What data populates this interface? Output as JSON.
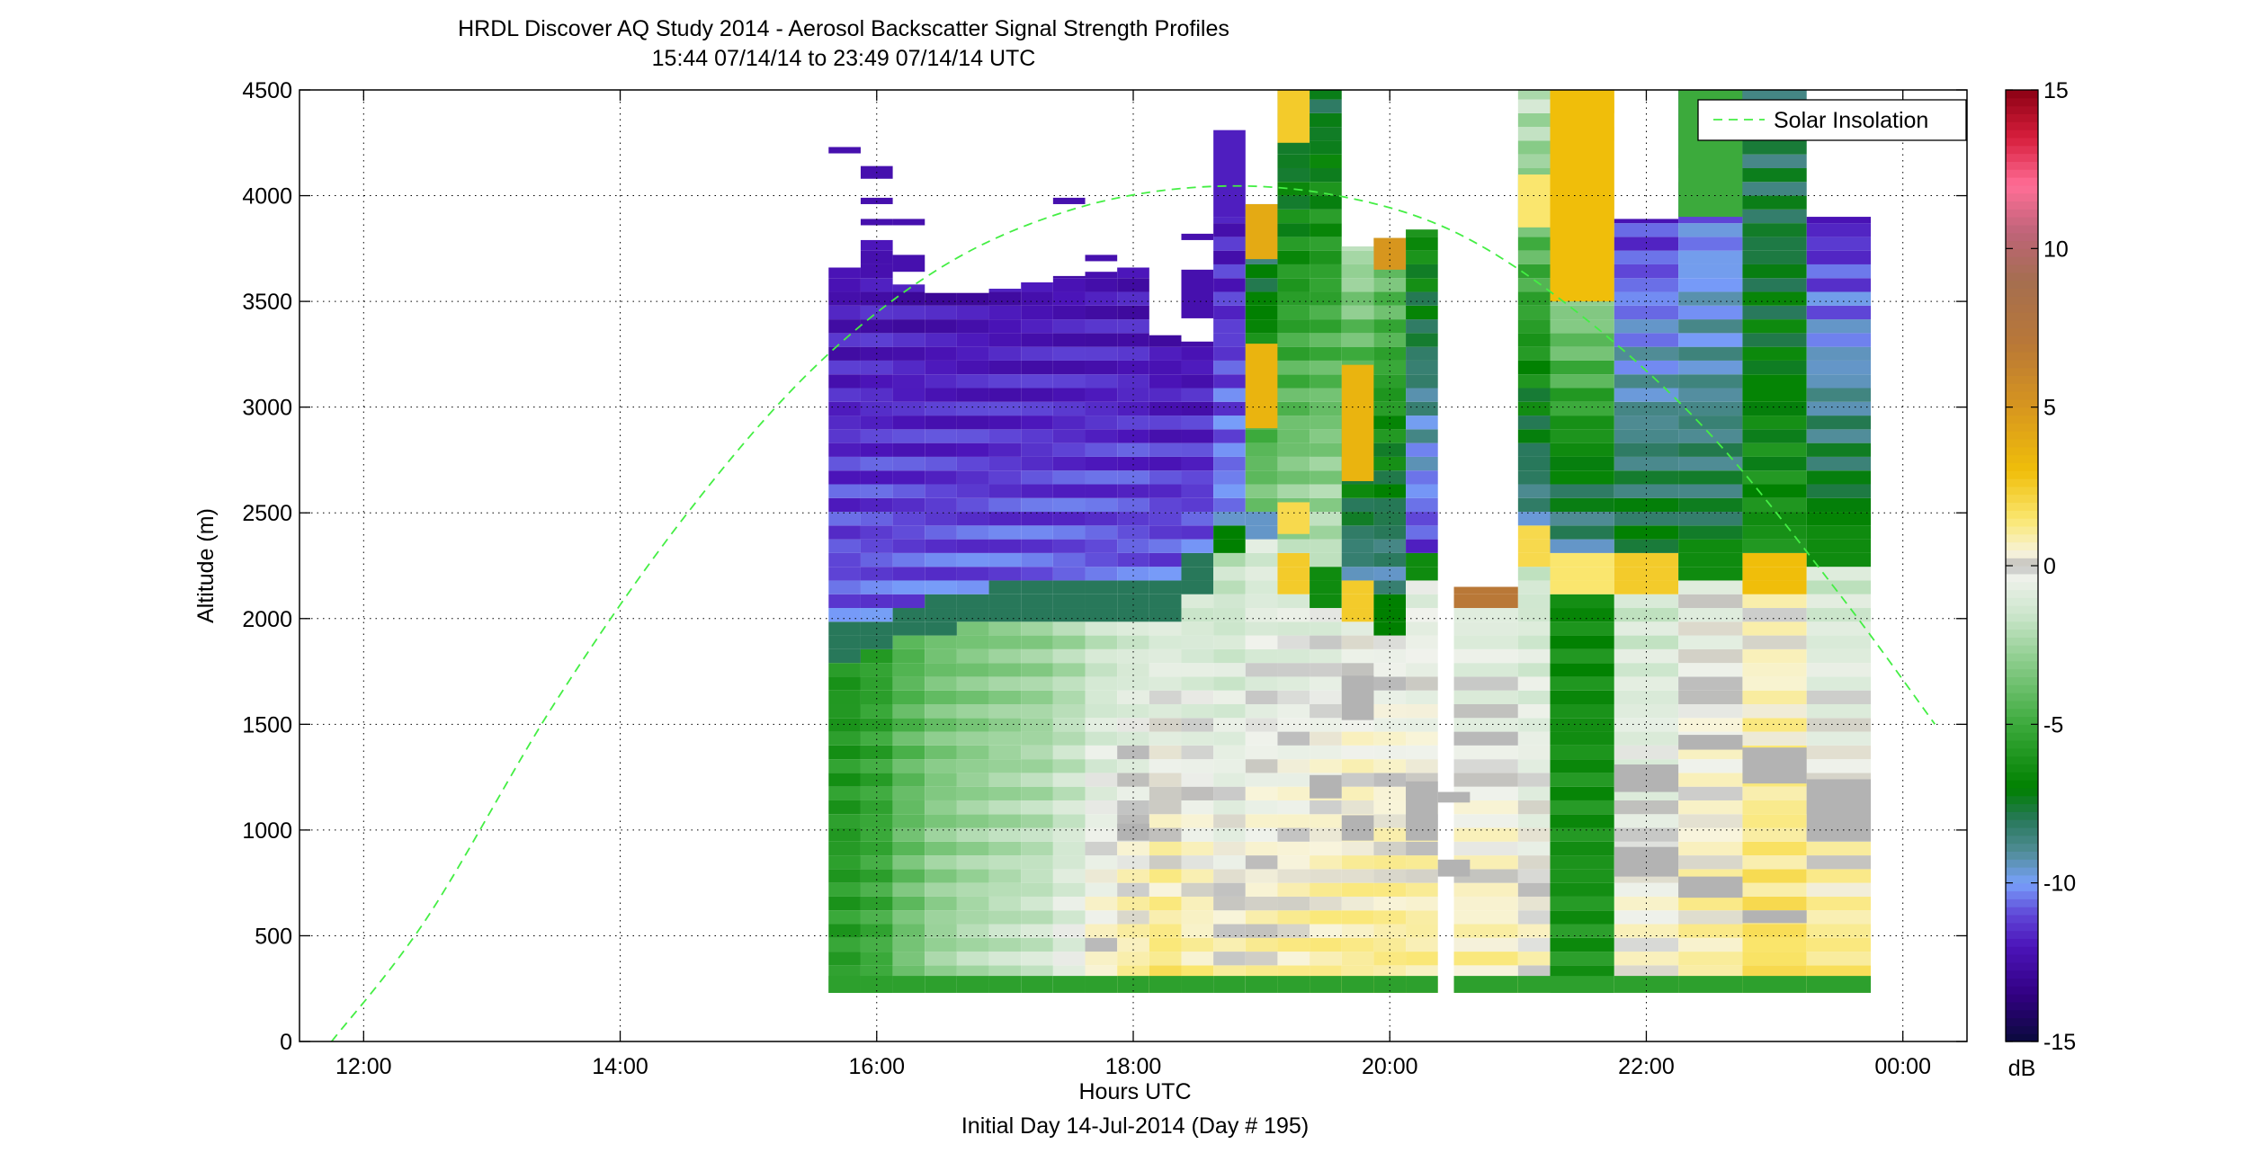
{
  "chart_data": {
    "type": "heatmap",
    "title": "HRDL Discover AQ Study 2014 - Aerosol Backscatter Signal Strength Profiles",
    "subtitle": "15:44 07/14/14 to 23:49 07/14/14  UTC",
    "xlabel": "Hours UTC",
    "xlabel2": "Initial Day 14-Jul-2014 (Day # 195)",
    "ylabel": "Altitude (m)",
    "xlim": [
      11.5,
      24.5
    ],
    "ylim": [
      0,
      4500
    ],
    "x_ticks": [
      12,
      14,
      16,
      18,
      20,
      22,
      24
    ],
    "x_tick_labels": [
      "12:00",
      "14:00",
      "16:00",
      "18:00",
      "20:00",
      "22:00",
      "00:00"
    ],
    "y_ticks": [
      0,
      500,
      1000,
      1500,
      2000,
      2500,
      3000,
      3500,
      4000,
      4500
    ],
    "y_tick_labels": [
      "0",
      "500",
      "1000",
      "1500",
      "2000",
      "2500",
      "3000",
      "3500",
      "4000",
      "4500"
    ],
    "grid": true,
    "legend": {
      "entries": [
        "Solar Insolation"
      ],
      "placement": "top-right"
    },
    "colorbar": {
      "label": "dB",
      "range": [
        -15,
        15
      ],
      "ticks": [
        -15,
        -10,
        -5,
        0,
        5,
        10,
        15
      ],
      "tick_labels": [
        "-15",
        "-10",
        "-5",
        "0",
        "5",
        "10",
        "15"
      ]
    },
    "colors": {
      "solar_insolation_line": "#44ee44",
      "no_data": "#ffffff"
    },
    "solar_insolation": {
      "name": "Solar Insolation",
      "style": "dashed",
      "x": [
        11.75,
        12.5,
        13.5,
        14.5,
        15.5,
        16.5,
        17.5,
        18.5,
        19.5,
        20.5,
        21.5,
        22.5,
        23.5,
        24.25
      ],
      "y": [
        0,
        590,
        1610,
        2480,
        3180,
        3660,
        3930,
        4040,
        4010,
        3830,
        3430,
        2870,
        2120,
        1500
      ]
    },
    "profiles": [
      {
        "t": 15.75,
        "w": 0.25,
        "bottom": 230,
        "top": 3660,
        "base_db": -6.0,
        "gradient_db": -0.5,
        "pbl": 1860,
        "trans_db": -8.0,
        "upper_db": -11.5,
        "upper_low_db": -10.6,
        "upper_high_db": -12.3,
        "extras": [
          {
            "lo": 4200,
            "hi": 4230,
            "db": -12.3
          }
        ]
      },
      {
        "t": 16.0,
        "w": 0.25,
        "bottom": 230,
        "top": 3790,
        "base_db": -5.5,
        "gradient_db": -0.6,
        "pbl": 1900,
        "trans_db": -8.0,
        "upper_db": -11.5,
        "upper_low_db": -10.6,
        "upper_high_db": -12.3,
        "extras": [
          {
            "lo": 4080,
            "hi": 4140,
            "db": -12.3
          },
          {
            "lo": 3960,
            "hi": 3990,
            "db": -12.3
          },
          {
            "lo": 3860,
            "hi": 3890,
            "db": -12.3
          }
        ]
      },
      {
        "t": 16.25,
        "w": 0.25,
        "bottom": 230,
        "top": 3580,
        "base_db": -4.5,
        "gradient_db": -1.0,
        "pbl": 1950,
        "trans_db": -8.0,
        "upper_db": -11.5,
        "upper_low_db": -10.6,
        "upper_high_db": -12.3,
        "extras": [
          {
            "lo": 3860,
            "hi": 3890,
            "db": -12.3
          },
          {
            "lo": 3640,
            "hi": 3720,
            "db": -12.3
          }
        ]
      },
      {
        "t": 16.5,
        "w": 0.25,
        "bottom": 230,
        "top": 3540,
        "base_db": -3.8,
        "gradient_db": -1.3,
        "pbl": 1980,
        "trans_db": -8.0,
        "upper_db": -11.5,
        "upper_low_db": -10.6,
        "upper_high_db": -12.3,
        "extras": []
      },
      {
        "t": 16.75,
        "w": 0.25,
        "bottom": 230,
        "top": 3540,
        "base_db": -3.5,
        "gradient_db": -1.5,
        "pbl": 2020,
        "trans_db": -8.0,
        "upper_db": -11.5,
        "upper_low_db": -10.6,
        "upper_high_db": -12.3,
        "extras": []
      },
      {
        "t": 17.0,
        "w": 0.25,
        "bottom": 230,
        "top": 3560,
        "base_db": -3.2,
        "gradient_db": -1.6,
        "pbl": 2050,
        "trans_db": -8.0,
        "upper_db": -11.5,
        "upper_low_db": -10.6,
        "upper_high_db": -12.3,
        "extras": []
      },
      {
        "t": 17.25,
        "w": 0.25,
        "bottom": 230,
        "top": 3590,
        "base_db": -3.0,
        "gradient_db": -1.7,
        "pbl": 2060,
        "trans_db": -8.0,
        "upper_db": -11.5,
        "upper_low_db": -10.6,
        "upper_high_db": -12.3,
        "extras": []
      },
      {
        "t": 17.5,
        "w": 0.25,
        "bottom": 230,
        "top": 3620,
        "base_db": -2.5,
        "gradient_db": -2.0,
        "pbl": 2070,
        "trans_db": -8.0,
        "upper_db": -11.5,
        "upper_low_db": -10.6,
        "upper_high_db": -12.3,
        "extras": [
          {
            "lo": 3960,
            "hi": 3990,
            "db": -12.3
          }
        ]
      },
      {
        "t": 17.75,
        "w": 0.25,
        "bottom": 230,
        "top": 3640,
        "base_db": -1.8,
        "gradient_db": -2.4,
        "pbl": 2070,
        "trans_db": -8.0,
        "upper_db": -11.5,
        "upper_low_db": -10.6,
        "upper_high_db": -12.3,
        "extras": [
          {
            "lo": 3690,
            "hi": 3720,
            "db": -12.3
          }
        ]
      },
      {
        "t": 18.0,
        "w": 0.25,
        "bottom": 230,
        "top": 3660,
        "base_db": -1.5,
        "gradient_db": -2.6,
        "pbl": 2070,
        "trans_db": -8.0,
        "upper_db": -11.5,
        "upper_low_db": -10.6,
        "upper_high_db": -12.3,
        "extras": []
      },
      {
        "t": 18.25,
        "w": 0.25,
        "bottom": 230,
        "top": 3340,
        "base_db": -1.2,
        "gradient_db": -2.8,
        "pbl": 2070,
        "trans_db": -8.0,
        "upper_db": -11.5,
        "upper_low_db": -10.6,
        "upper_high_db": -12.3,
        "extras": []
      },
      {
        "t": 18.5,
        "w": 0.25,
        "bottom": 230,
        "top": 3310,
        "base_db": -1.5,
        "gradient_db": -2.6,
        "pbl": 2200,
        "trans_db": -8.0,
        "upper_db": -11.5,
        "upper_low_db": -10.6,
        "upper_high_db": -12.3,
        "extras": [
          {
            "lo": 3790,
            "hi": 3820,
            "db": -12.3
          },
          {
            "lo": 3420,
            "hi": 3650,
            "db": -12.3
          }
        ]
      },
      {
        "t": 18.75,
        "w": 0.25,
        "bottom": 230,
        "top": 3900,
        "base_db": -1.8,
        "gradient_db": -2.4,
        "pbl": 2350,
        "trans_db": -7.0,
        "upper_db": -11.0,
        "upper_low_db": -10.0,
        "upper_high_db": -12.0,
        "extras": [
          {
            "lo": 3900,
            "hi": 4310,
            "db": -11.8
          }
        ]
      },
      {
        "t": 19.0,
        "w": 0.25,
        "bottom": 230,
        "top": 3960,
        "base_db": -1.2,
        "gradient_db": -2.0,
        "pbl": 2400,
        "trans_db": -9.5,
        "upper_db": -6.5,
        "upper_low_db": -3.0,
        "upper_high_db": -9.0,
        "extras": [
          {
            "lo": 2900,
            "hi": 3300,
            "db": 3.5
          },
          {
            "lo": 3700,
            "hi": 3960,
            "db": 4.0
          }
        ]
      },
      {
        "t": 19.25,
        "w": 0.25,
        "bottom": 230,
        "top": 4500,
        "base_db": -1.0,
        "gradient_db": -2.0,
        "pbl": 2200,
        "trans_db": 2.5,
        "upper_db": -5.5,
        "upper_low_db": -2.0,
        "upper_high_db": -8.5,
        "extras": [
          {
            "lo": 4250,
            "hi": 4500,
            "db": 2.5
          },
          {
            "lo": 2400,
            "hi": 2550,
            "db": 2.0
          }
        ]
      },
      {
        "t": 19.5,
        "w": 0.25,
        "bottom": 230,
        "top": 4500,
        "base_db": -0.8,
        "gradient_db": -2.0,
        "pbl": 2120,
        "trans_db": -6.5,
        "upper_db": -5.0,
        "upper_low_db": -1.5,
        "upper_high_db": -8.0,
        "extras": []
      },
      {
        "t": 19.75,
        "w": 0.25,
        "bottom": 230,
        "top": 3760,
        "base_db": -0.3,
        "gradient_db": -1.5,
        "pbl": 2050,
        "trans_db": 2.5,
        "upper_db": -5.5,
        "upper_low_db": -9.5,
        "upper_high_db": -2.0,
        "extras": [
          {
            "lo": 2650,
            "hi": 3200,
            "db": 3.5
          }
        ]
      },
      {
        "t": 20.0,
        "w": 0.25,
        "bottom": 230,
        "top": 3800,
        "base_db": -0.5,
        "gradient_db": -1.8,
        "pbl": 2000,
        "trans_db": -7.0,
        "upper_db": -6.0,
        "upper_low_db": -9.5,
        "upper_high_db": -3.0,
        "extras": [
          {
            "lo": 3650,
            "hi": 3800,
            "db": 5.0
          }
        ]
      },
      {
        "t": 20.25,
        "w": 0.25,
        "bottom": 230,
        "top": 3840,
        "base_db": -0.8,
        "gradient_db": -2.0,
        "pbl": 2220,
        "trans_db": -6.5,
        "upper_db": -10.5,
        "upper_low_db": -11.5,
        "upper_high_db": -6.0,
        "extras": []
      },
      {
        "t": 20.75,
        "w": 0.5,
        "bottom": 230,
        "top": 2150,
        "base_db": -1.0,
        "gradient_db": -2.0,
        "pbl": 2100,
        "trans_db": 7.0,
        "upper_db": 7.0,
        "upper_low_db": 7.0,
        "upper_high_db": 7.0,
        "extras": []
      },
      {
        "t": 21.125,
        "w": 0.25,
        "bottom": 230,
        "top": 4500,
        "base_db": -1.5,
        "gradient_db": -2.0,
        "pbl": 2300,
        "trans_db": 2.0,
        "upper_db": -5.5,
        "upper_low_db": -9.5,
        "upper_high_db": -1.5,
        "extras": [
          {
            "lo": 3850,
            "hi": 4100,
            "db": 1.5
          }
        ]
      },
      {
        "t": 21.5,
        "w": 0.5,
        "bottom": 230,
        "top": 4500,
        "base_db": -6.5,
        "gradient_db": -0.5,
        "pbl": 2200,
        "trans_db": 1.5,
        "upper_db": -5.5,
        "upper_low_db": -9.5,
        "upper_high_db": 2.5,
        "extras": [
          {
            "lo": 3500,
            "hi": 4500,
            "db": 3.0
          }
        ]
      },
      {
        "t": 22.0,
        "w": 0.5,
        "bottom": 230,
        "top": 3890,
        "base_db": -1.5,
        "gradient_db": -2.0,
        "pbl": 2200,
        "trans_db": 2.5,
        "upper_db": -10.5,
        "upper_low_db": -7.0,
        "upper_high_db": -11.5,
        "extras": []
      },
      {
        "t": 22.5,
        "w": 0.5,
        "bottom": 230,
        "top": 4500,
        "base_db": -0.5,
        "gradient_db": -1.5,
        "pbl": 2250,
        "trans_db": -6.5,
        "upper_db": -9.0,
        "upper_low_db": -7.5,
        "upper_high_db": -11.5,
        "extras": [
          {
            "lo": 3900,
            "hi": 4500,
            "db": -5.0
          }
        ]
      },
      {
        "t": 23.0,
        "w": 0.5,
        "bottom": 230,
        "top": 4500,
        "base_db": 0.3,
        "gradient_db": -1.5,
        "pbl": 2200,
        "trans_db": 3.0,
        "upper_db": -7.5,
        "upper_low_db": -6.0,
        "upper_high_db": -8.5,
        "extras": []
      },
      {
        "t": 23.5,
        "w": 0.5,
        "bottom": 230,
        "top": 3900,
        "base_db": -1.5,
        "gradient_db": -3.0,
        "pbl": 2300,
        "trans_db": -6.5,
        "upper_db": -9.5,
        "upper_low_db": -6.5,
        "upper_high_db": -12.0,
        "extras": []
      }
    ],
    "no_signal_bands": [
      {
        "t": 18.0,
        "lo": 950,
        "hi": 1030
      },
      {
        "t": 19.5,
        "lo": 1150,
        "hi": 1260
      },
      {
        "t": 19.75,
        "lo": 1520,
        "hi": 1730
      },
      {
        "t": 19.75,
        "lo": 950,
        "hi": 1070
      },
      {
        "t": 20.25,
        "lo": 950,
        "hi": 1230
      },
      {
        "t": 20.5,
        "lo": 1130,
        "hi": 1180
      },
      {
        "t": 20.5,
        "lo": 780,
        "hi": 860
      },
      {
        "t": 22.0,
        "lo": 1180,
        "hi": 1310
      },
      {
        "t": 22.0,
        "lo": 780,
        "hi": 920
      },
      {
        "t": 22.5,
        "lo": 1380,
        "hi": 1450
      },
      {
        "t": 22.5,
        "lo": 680,
        "hi": 780
      },
      {
        "t": 23.0,
        "lo": 1220,
        "hi": 1390
      },
      {
        "t": 23.0,
        "lo": 560,
        "hi": 620
      },
      {
        "t": 23.5,
        "lo": 950,
        "hi": 1240
      }
    ],
    "notes": "Each profile column shows signal (dB) rising from ~230 m to its top altitude; white areas are no data; grey blocks are saturated/no-signal returns."
  }
}
